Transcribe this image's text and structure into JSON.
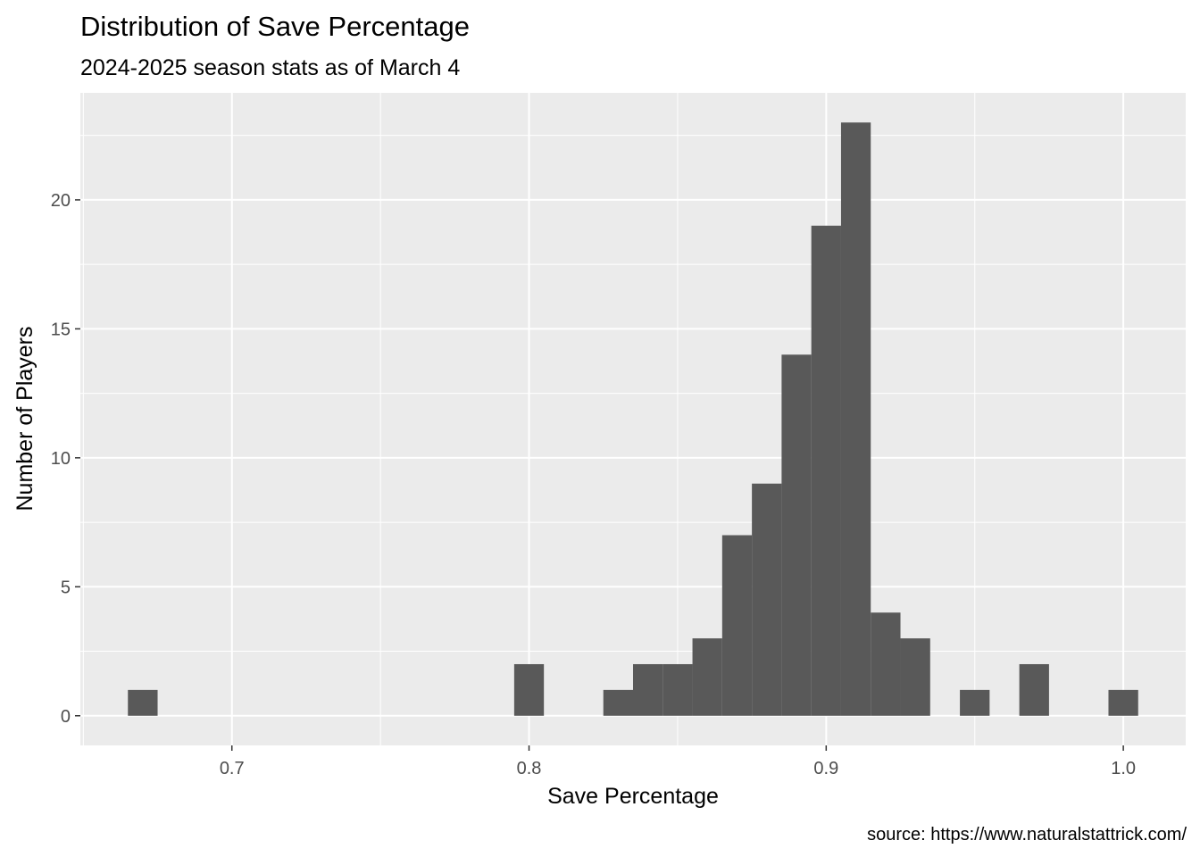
{
  "chart_data": {
    "type": "bar",
    "title": "Distribution of Save Percentage",
    "subtitle": "2024-2025 season stats as of March 4",
    "xlabel": "Save Percentage",
    "ylabel": "Number of Players",
    "caption": "source: https://www.naturalstattrick.com/",
    "xlim": [
      0.649,
      1.021
    ],
    "ylim": [
      -1.15,
      24.15
    ],
    "x_ticks": [
      0.7,
      0.8,
      0.9,
      1.0
    ],
    "x_tick_labels": [
      "0.7",
      "0.8",
      "0.9",
      "1.0"
    ],
    "y_ticks": [
      0,
      5,
      10,
      15,
      20
    ],
    "y_tick_labels": [
      "0",
      "5",
      "10",
      "15",
      "20"
    ],
    "x_minor_ticks": [
      0.65,
      0.75,
      0.85,
      0.95
    ],
    "y_minor_ticks": [
      2.5,
      7.5,
      12.5,
      17.5,
      22.5
    ],
    "bin_width": 0.01,
    "bins": [
      {
        "center": 0.67,
        "count": 1
      },
      {
        "center": 0.8,
        "count": 2
      },
      {
        "center": 0.83,
        "count": 1
      },
      {
        "center": 0.84,
        "count": 2
      },
      {
        "center": 0.85,
        "count": 2
      },
      {
        "center": 0.86,
        "count": 3
      },
      {
        "center": 0.87,
        "count": 7
      },
      {
        "center": 0.88,
        "count": 9
      },
      {
        "center": 0.89,
        "count": 14
      },
      {
        "center": 0.9,
        "count": 19
      },
      {
        "center": 0.91,
        "count": 23
      },
      {
        "center": 0.92,
        "count": 4
      },
      {
        "center": 0.93,
        "count": 3
      },
      {
        "center": 0.95,
        "count": 1
      },
      {
        "center": 0.97,
        "count": 2
      },
      {
        "center": 1.0,
        "count": 1
      }
    ],
    "grid": true,
    "panel_color": "#ebebeb",
    "bar_color": "#595959",
    "grid_color": "#ffffff"
  }
}
